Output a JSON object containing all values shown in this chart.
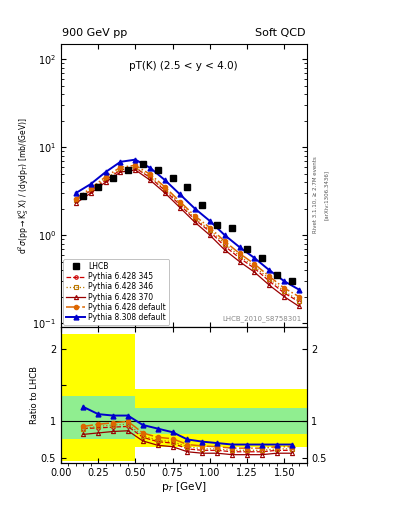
{
  "title_left": "900 GeV pp",
  "title_right": "Soft QCD",
  "annotation": "pT(K) (2.5 < y < 4.0)",
  "watermark": "LHCB_2010_S8758301",
  "right_label": "Rivet 3.1.10, ≥ 2.7M events",
  "arxiv_label": "[arXiv:1306.3436]",
  "ylabel_ratio": "Ratio to LHCB",
  "xlabel": "p_{T} [GeV]",
  "lhcb_x": [
    0.15,
    0.25,
    0.35,
    0.45,
    0.55,
    0.65,
    0.75,
    0.85,
    0.95,
    1.05,
    1.15,
    1.25,
    1.35,
    1.45,
    1.55
  ],
  "lhcb_y": [
    2.8,
    3.5,
    4.5,
    5.5,
    6.5,
    5.5,
    4.5,
    3.5,
    2.2,
    1.3,
    1.2,
    0.7,
    0.55,
    0.35,
    0.3
  ],
  "py6_345_x": [
    0.1,
    0.2,
    0.3,
    0.4,
    0.5,
    0.6,
    0.7,
    0.8,
    0.9,
    1.0,
    1.1,
    1.2,
    1.3,
    1.4,
    1.5,
    1.6
  ],
  "py6_345_y": [
    2.5,
    3.2,
    4.2,
    5.5,
    5.8,
    4.5,
    3.2,
    2.2,
    1.5,
    1.1,
    0.75,
    0.55,
    0.42,
    0.3,
    0.22,
    0.175
  ],
  "py6_346_x": [
    0.1,
    0.2,
    0.3,
    0.4,
    0.5,
    0.6,
    0.7,
    0.8,
    0.9,
    1.0,
    1.1,
    1.2,
    1.3,
    1.4,
    1.5,
    1.6
  ],
  "py6_346_y": [
    2.5,
    3.3,
    4.4,
    5.6,
    5.9,
    4.6,
    3.3,
    2.3,
    1.55,
    1.15,
    0.8,
    0.58,
    0.44,
    0.32,
    0.23,
    0.18
  ],
  "py6_370_x": [
    0.1,
    0.2,
    0.3,
    0.4,
    0.5,
    0.6,
    0.7,
    0.8,
    0.9,
    1.0,
    1.1,
    1.2,
    1.3,
    1.4,
    1.5,
    1.6
  ],
  "py6_370_y": [
    2.3,
    3.0,
    4.0,
    5.2,
    5.5,
    4.2,
    3.0,
    2.05,
    1.4,
    1.0,
    0.68,
    0.5,
    0.38,
    0.27,
    0.2,
    0.155
  ],
  "py6_def_x": [
    0.1,
    0.2,
    0.3,
    0.4,
    0.5,
    0.6,
    0.7,
    0.8,
    0.9,
    1.0,
    1.1,
    1.2,
    1.3,
    1.4,
    1.5,
    1.6
  ],
  "py6_def_y": [
    2.6,
    3.4,
    4.6,
    5.9,
    6.2,
    4.9,
    3.5,
    2.4,
    1.65,
    1.22,
    0.85,
    0.62,
    0.47,
    0.34,
    0.25,
    0.2
  ],
  "py8_def_x": [
    0.1,
    0.2,
    0.3,
    0.4,
    0.5,
    0.6,
    0.7,
    0.8,
    0.9,
    1.0,
    1.1,
    1.2,
    1.3,
    1.4,
    1.5,
    1.6
  ],
  "py8_def_y": [
    3.0,
    3.8,
    5.2,
    6.8,
    7.2,
    5.8,
    4.2,
    2.9,
    2.0,
    1.45,
    1.0,
    0.73,
    0.55,
    0.4,
    0.3,
    0.24
  ],
  "ratio_lhcb_x": [
    0.15,
    0.25,
    0.35,
    0.45,
    0.55,
    0.65,
    0.75,
    0.85,
    0.95,
    1.05,
    1.15,
    1.25,
    1.35,
    1.45,
    1.55
  ],
  "ratio_yellow_edges": [
    0.0,
    0.1,
    0.5,
    1.65
  ],
  "ratio_yellow_lo": [
    0.45,
    0.45,
    0.65,
    0.65
  ],
  "ratio_yellow_hi": [
    2.2,
    2.2,
    1.45,
    1.45
  ],
  "ratio_green_edges": [
    0.0,
    0.1,
    0.5,
    1.65
  ],
  "ratio_green_lo": [
    0.75,
    0.75,
    0.82,
    0.82
  ],
  "ratio_green_hi": [
    1.35,
    1.35,
    1.18,
    1.18
  ],
  "ratio_py6_345": [
    0.9,
    0.91,
    0.92,
    0.93,
    0.78,
    0.72,
    0.7,
    0.62,
    0.6,
    0.6,
    0.58,
    0.58,
    0.58,
    0.6,
    0.6
  ],
  "ratio_py6_346": [
    0.9,
    0.93,
    0.95,
    0.96,
    0.8,
    0.74,
    0.72,
    0.65,
    0.62,
    0.62,
    0.6,
    0.6,
    0.6,
    0.62,
    0.62
  ],
  "ratio_py6_370": [
    0.82,
    0.84,
    0.86,
    0.87,
    0.73,
    0.67,
    0.65,
    0.58,
    0.56,
    0.56,
    0.54,
    0.54,
    0.54,
    0.56,
    0.56
  ],
  "ratio_py6_def": [
    0.93,
    0.96,
    0.98,
    1.0,
    0.84,
    0.78,
    0.76,
    0.68,
    0.66,
    0.65,
    0.63,
    0.63,
    0.63,
    0.65,
    0.65
  ],
  "ratio_py8_def": [
    1.2,
    1.1,
    1.08,
    1.08,
    0.95,
    0.9,
    0.85,
    0.75,
    0.72,
    0.7,
    0.68,
    0.68,
    0.68,
    0.68,
    0.68
  ],
  "color_py6_345": "#cc0000",
  "color_py6_346": "#bb7700",
  "color_py6_370": "#990000",
  "color_py6_def": "#dd6600",
  "color_py8_def": "#0000cc",
  "color_lhcb": "#000000",
  "ylim_main": [
    0.09,
    150
  ],
  "ylim_ratio": [
    0.42,
    2.3
  ],
  "xlim": [
    0.0,
    1.65
  ]
}
